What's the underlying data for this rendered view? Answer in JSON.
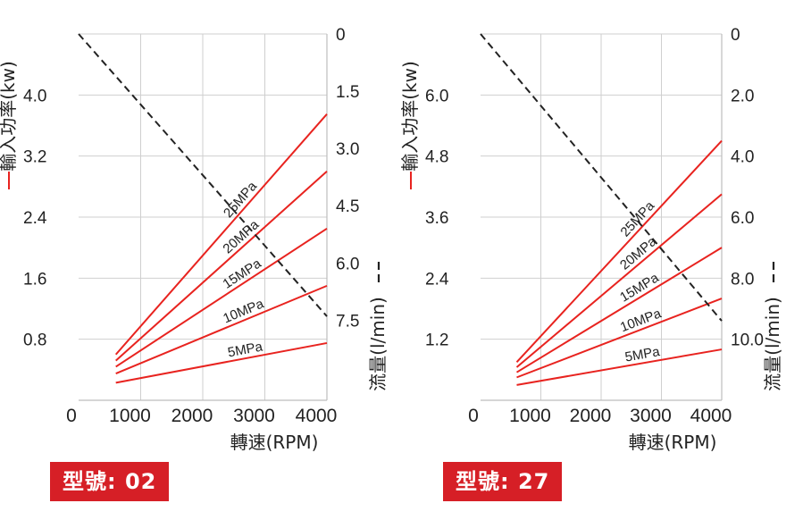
{
  "chart_data": [
    {
      "type": "line",
      "model_badge": "型號: 02",
      "xlabel": "轉速(RPM)",
      "ylabel_left": "輸入功率(kw)",
      "ylabel_right": "流量(l/min)",
      "x_ticks": [
        "0",
        "1000",
        "2000",
        "3000",
        "4000"
      ],
      "left_ticks": [
        "0.8",
        "1.6",
        "2.4",
        "3.2",
        "4.0"
      ],
      "right_ticks": [
        "0",
        "1.5",
        "3.0",
        "4.5",
        "6.0",
        "7.5"
      ],
      "xlim": [
        0,
        4000
      ],
      "ylim_left": [
        0,
        4.8
      ],
      "ylim_right": [
        0,
        9.6
      ],
      "right_axis_inverted": true,
      "grid": true,
      "colors": {
        "power": "#e8231f",
        "flow": "#222222"
      },
      "series": [
        {
          "name": "25MPa",
          "axis": "left",
          "x": [
            600,
            4000
          ],
          "y": [
            0.6,
            3.75
          ]
        },
        {
          "name": "20MPa",
          "axis": "left",
          "x": [
            600,
            4000
          ],
          "y": [
            0.52,
            3.0
          ]
        },
        {
          "name": "15MPa",
          "axis": "left",
          "x": [
            600,
            4000
          ],
          "y": [
            0.44,
            2.25
          ]
        },
        {
          "name": "10MPa",
          "axis": "left",
          "x": [
            600,
            4000
          ],
          "y": [
            0.35,
            1.5
          ]
        },
        {
          "name": "5MPa",
          "axis": "left",
          "x": [
            600,
            4000
          ],
          "y": [
            0.23,
            0.75
          ]
        },
        {
          "name": "",
          "axis": "right",
          "style": "dashed",
          "x": [
            0,
            4000
          ],
          "y": [
            0,
            7.4
          ]
        }
      ]
    },
    {
      "type": "line",
      "model_badge": "型號: 27",
      "xlabel": "轉速(RPM)",
      "ylabel_left": "輸入功率(kw)",
      "ylabel_right": "流量(l/min)",
      "x_ticks": [
        "0",
        "1000",
        "2000",
        "3000",
        "4000"
      ],
      "left_ticks": [
        "1.2",
        "2.4",
        "3.6",
        "4.8",
        "6.0"
      ],
      "right_ticks": [
        "0",
        "2.0",
        "4.0",
        "6.0",
        "8.0",
        "10.0"
      ],
      "xlim": [
        0,
        4000
      ],
      "ylim_left": [
        0,
        7.2
      ],
      "ylim_right": [
        0,
        12
      ],
      "right_axis_inverted": true,
      "grid": true,
      "colors": {
        "power": "#e8231f",
        "flow": "#222222"
      },
      "series": [
        {
          "name": "25MPa",
          "axis": "left",
          "x": [
            600,
            4000
          ],
          "y": [
            0.75,
            5.1
          ]
        },
        {
          "name": "20MPa",
          "axis": "left",
          "x": [
            600,
            4000
          ],
          "y": [
            0.65,
            4.05
          ]
        },
        {
          "name": "15MPa",
          "axis": "left",
          "x": [
            600,
            4000
          ],
          "y": [
            0.55,
            3.0
          ]
        },
        {
          "name": "10MPa",
          "axis": "left",
          "x": [
            600,
            4000
          ],
          "y": [
            0.45,
            2.0
          ]
        },
        {
          "name": "5MPa",
          "axis": "left",
          "x": [
            600,
            4000
          ],
          "y": [
            0.3,
            1.0
          ]
        },
        {
          "name": "",
          "axis": "right",
          "style": "dashed",
          "x": [
            0,
            4000
          ],
          "y": [
            0,
            9.4
          ]
        }
      ]
    }
  ]
}
